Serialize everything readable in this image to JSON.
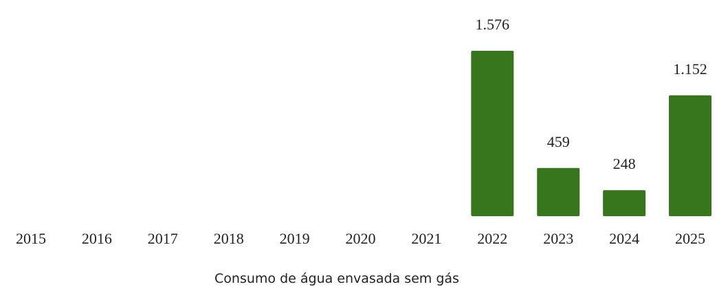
{
  "chart_data": {
    "type": "bar",
    "title": "Consumo de água envasada sem gás",
    "categories": [
      "2015",
      "2016",
      "2017",
      "2018",
      "2019",
      "2020",
      "2021",
      "2022",
      "2023",
      "2024",
      "2025"
    ],
    "values": [
      null,
      null,
      null,
      null,
      null,
      null,
      null,
      1576,
      459,
      248,
      1152
    ],
    "value_labels": [
      null,
      null,
      null,
      null,
      null,
      null,
      null,
      "1.576",
      "459",
      "248",
      "1.152"
    ],
    "color": "#38761d"
  }
}
